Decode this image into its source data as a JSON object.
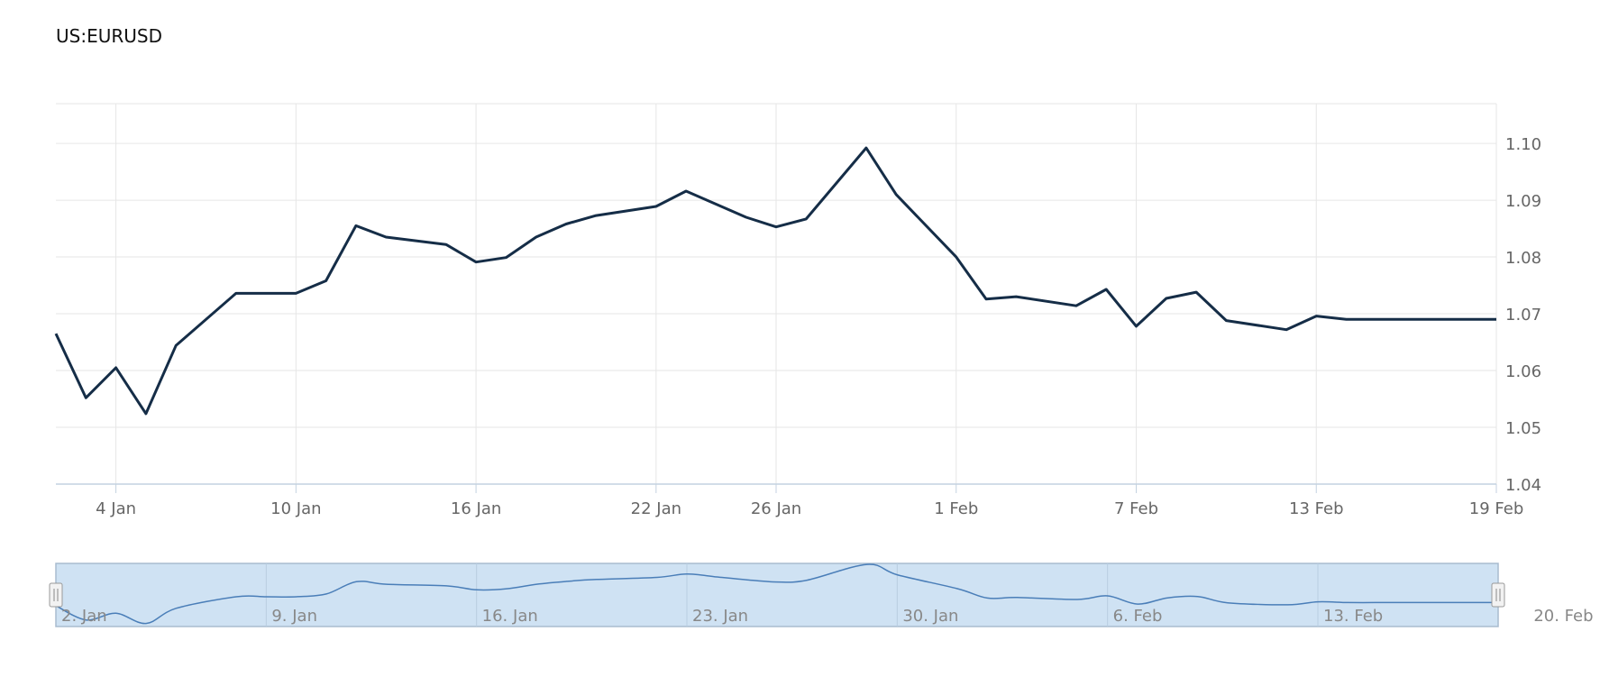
{
  "title": "US:EURUSD",
  "colors": {
    "line": "#152d47",
    "grid": "#e6e6e6",
    "axis": "#c4d2e0",
    "navigator_fill": "#cfe2f3",
    "navigator_border": "#a8bccf",
    "navigator_line": "#4a7eb8"
  },
  "chart_data": {
    "type": "line",
    "title": "US:EURUSD",
    "xlabel": "",
    "ylabel": "",
    "x_start": "2023-01-02",
    "x_end": "2023-02-19",
    "ylim": [
      1.04,
      1.107
    ],
    "yticks": [
      1.04,
      1.05,
      1.06,
      1.07,
      1.08,
      1.09,
      1.1
    ],
    "ytick_labels": [
      "1.04",
      "1.05",
      "1.06",
      "1.07",
      "1.08",
      "1.09",
      "1.10"
    ],
    "xticks": [
      {
        "date": "2023-01-04",
        "label": "4 Jan"
      },
      {
        "date": "2023-01-10",
        "label": "10 Jan"
      },
      {
        "date": "2023-01-16",
        "label": "16 Jan"
      },
      {
        "date": "2023-01-22",
        "label": "22 Jan"
      },
      {
        "date": "2023-01-26",
        "label": "26 Jan"
      },
      {
        "date": "2023-02-01",
        "label": "1 Feb"
      },
      {
        "date": "2023-02-07",
        "label": "7 Feb"
      },
      {
        "date": "2023-02-13",
        "label": "13 Feb"
      },
      {
        "date": "2023-02-19",
        "label": "19 Feb"
      }
    ],
    "grid": true,
    "legend": "none",
    "series": [
      {
        "x": [
          "2023-01-02",
          "2023-01-03",
          "2023-01-04",
          "2023-01-05",
          "2023-01-06",
          "2023-01-08",
          "2023-01-09",
          "2023-01-10",
          "2023-01-11",
          "2023-01-12",
          "2023-01-13",
          "2023-01-15",
          "2023-01-16",
          "2023-01-17",
          "2023-01-18",
          "2023-01-19",
          "2023-01-20",
          "2023-01-22",
          "2023-01-23",
          "2023-01-24",
          "2023-01-25",
          "2023-01-26",
          "2023-01-27",
          "2023-01-29",
          "2023-01-30",
          "2023-02-01",
          "2023-02-02",
          "2023-02-03",
          "2023-02-05",
          "2023-02-06",
          "2023-02-07",
          "2023-02-08",
          "2023-02-09",
          "2023-02-10",
          "2023-02-12",
          "2023-02-13",
          "2023-02-14",
          "2023-02-15",
          "2023-02-16",
          "2023-02-17",
          "2023-02-19"
        ],
        "y": [
          1.0665,
          1.0552,
          1.0605,
          1.0524,
          1.0644,
          1.0736,
          1.0736,
          1.0736,
          1.0758,
          1.0855,
          1.0835,
          1.0822,
          1.0791,
          1.0799,
          1.0835,
          1.0858,
          1.0873,
          1.0889,
          1.0916,
          1.0893,
          1.087,
          1.0853,
          1.0867,
          1.0992,
          1.091,
          1.08,
          1.0726,
          1.073,
          1.0714,
          1.0743,
          1.0678,
          1.0727,
          1.0738,
          1.0688,
          1.0672,
          1.0696,
          1.069,
          1.069,
          1.069,
          1.069,
          1.069
        ]
      }
    ]
  },
  "navigator": {
    "labels": [
      {
        "date": "2023-01-02",
        "label": "2. Jan"
      },
      {
        "date": "2023-01-09",
        "label": "9. Jan"
      },
      {
        "date": "2023-01-16",
        "label": "16. Jan"
      },
      {
        "date": "2023-01-23",
        "label": "23. Jan"
      },
      {
        "date": "2023-01-30",
        "label": "30. Jan"
      },
      {
        "date": "2023-02-06",
        "label": "6. Feb"
      },
      {
        "date": "2023-02-13",
        "label": "13. Feb"
      },
      {
        "date": "2023-02-20",
        "label": "20. Feb"
      }
    ]
  }
}
